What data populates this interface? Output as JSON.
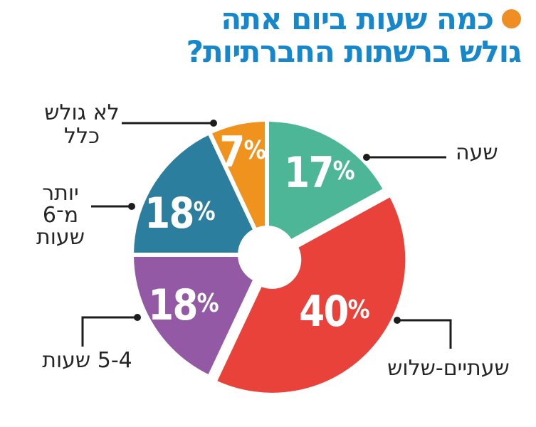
{
  "title": {
    "line1": "כמה שעות ביום אתה",
    "line2": "גולש ברשתות החברתיות?"
  },
  "colors": {
    "title": "#1787CC",
    "bullet": "#EE8E23",
    "leader_line": "#1d1d1b",
    "percent_text": "#ffffff",
    "label_text": "#262626",
    "background": "#ffffff",
    "slice_gap": "#ffffff"
  },
  "chart_data": {
    "type": "pie",
    "donut": true,
    "title": "כמה שעות ביום אתה גולש ברשתות החברתיות?",
    "unit": "%",
    "percent_sign": "%",
    "start_angle_deg": 0,
    "direction": "clockwise",
    "segments": [
      {
        "label": "שעה",
        "value": 17,
        "color": "#4CB696",
        "exploded": false
      },
      {
        "label": "שעתיים-שלוש",
        "value": 40,
        "color": "#E9423B",
        "exploded": true
      },
      {
        "label": "5-4 שעות",
        "value": 18,
        "color": "#9459A5",
        "exploded": false
      },
      {
        "label": "יותר מ־6 שעות",
        "value": 18,
        "color": "#2C7E9F",
        "exploded": false,
        "label_lines": [
          "יותר",
          "מ־6",
          "שעות"
        ]
      },
      {
        "label": "לא גולש כלל",
        "value": 7,
        "color": "#F0921E",
        "exploded": false,
        "label_lines": [
          "לא גולש",
          "כלל"
        ]
      }
    ]
  }
}
